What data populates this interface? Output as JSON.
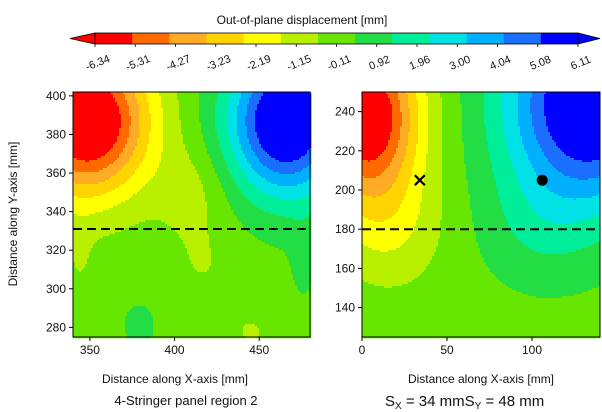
{
  "colorbar": {
    "title": "Out-of-plane displacement [mm]",
    "tick_labels": [
      "-6.34",
      "-5.31",
      "-4.27",
      "-3.23",
      "-2.19",
      "-1.15",
      "-0.11",
      "0.92",
      "1.96",
      "3.00",
      "4.04",
      "5.08",
      "6.11"
    ],
    "colors": [
      "#ff0000",
      "#ff6a00",
      "#ffab24",
      "#ffd400",
      "#ffff00",
      "#b9f000",
      "#66e600",
      "#22dd44",
      "#00ee99",
      "#00e2e6",
      "#00b0ff",
      "#1a6fff",
      "#0000ff"
    ]
  },
  "chart_data": [
    {
      "type": "heatmap",
      "caption": "4-Stringer panel region 2",
      "xlabel": "Distance along X-axis [mm]",
      "ylabel": "Distance along Y-axis [mm]",
      "xlim": [
        340,
        480
      ],
      "ylim": [
        275,
        402
      ],
      "xticks": [
        "350",
        "400",
        "450"
      ],
      "yticks": [
        "280",
        "300",
        "320",
        "340",
        "360",
        "380",
        "400"
      ],
      "xtick_values": [
        350,
        400,
        450
      ],
      "ytick_values": [
        280,
        300,
        320,
        340,
        360,
        380,
        400
      ],
      "dashed_line_y": 331,
      "grid": false,
      "field_description": "Negative displacement (red) in upper-left, positive (blue) in upper-right, near-zero (green) in lower half"
    },
    {
      "type": "heatmap",
      "caption": "S_X = 34 mm  S_Y = 48 mm",
      "xlabel": "Distance along X-axis [mm]",
      "ylabel": "",
      "xlim": [
        0,
        140
      ],
      "ylim": [
        125,
        250
      ],
      "xticks": [
        "0",
        "50",
        "100"
      ],
      "yticks": [
        "140",
        "160",
        "180",
        "200",
        "220",
        "240"
      ],
      "xtick_values": [
        0,
        50,
        100
      ],
      "ytick_values": [
        140,
        160,
        180,
        200,
        220,
        240
      ],
      "dashed_line_y": 180,
      "grid": false,
      "markers": [
        {
          "symbol": "x",
          "x": 34,
          "y": 205
        },
        {
          "symbol": "dot",
          "x": 106,
          "y": 205
        }
      ]
    }
  ],
  "captions": {
    "left": "4-Stringer panel region 2",
    "right_prefix_sx": "S",
    "right_sub_x": "X",
    "right_eq_x": " = 34 mm",
    "right_prefix_sy": "S",
    "right_sub_y": "Y",
    "right_eq_y": " = 48 mm"
  }
}
